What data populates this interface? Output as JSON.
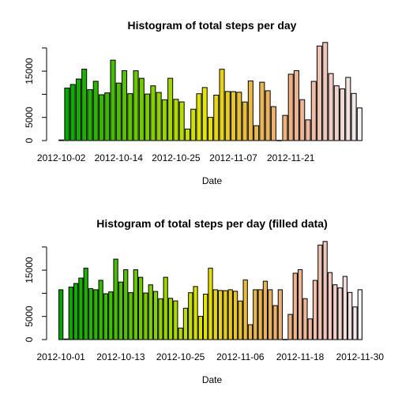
{
  "chart_data": [
    {
      "type": "bar",
      "title": "Histogram of total steps per day",
      "xlabel": "Date",
      "ylabel": "",
      "ylim": [
        0,
        21500
      ],
      "yticks": [
        0,
        5000,
        15000
      ],
      "ytick_labels": [
        "0",
        "5000",
        "15000"
      ],
      "xtick_labels": [
        "2012-10-02",
        "2012-10-14",
        "2012-10-25",
        "2012-11-07",
        "2012-11-21"
      ],
      "xtick_indices": [
        0,
        10,
        20,
        30,
        40
      ],
      "palette": "terrain",
      "values": [
        126,
        11352,
        12116,
        13294,
        15420,
        11015,
        12811,
        9900,
        10304,
        17382,
        12426,
        15098,
        10139,
        15084,
        13452,
        10056,
        11829,
        10395,
        8821,
        13460,
        8918,
        8355,
        2492,
        6778,
        10119,
        11458,
        5018,
        9819,
        15414,
        10600,
        10571,
        10439,
        8334,
        12883,
        3219,
        12608,
        10765,
        7336,
        41,
        5441,
        14339,
        15110,
        8841,
        4472,
        12787,
        20427,
        21194,
        14478,
        11834,
        11162,
        13646,
        10183,
        7047
      ]
    },
    {
      "type": "bar",
      "title": "Histogram of total steps per day (filled data)",
      "xlabel": "Date",
      "ylabel": "",
      "ylim": [
        0,
        21500
      ],
      "yticks": [
        0,
        5000,
        15000
      ],
      "ytick_labels": [
        "0",
        "5000",
        "15000"
      ],
      "xtick_labels": [
        "2012-10-01",
        "2012-10-13",
        "2012-10-25",
        "2012-11-06",
        "2012-11-18",
        "2012-11-30"
      ],
      "xtick_indices": [
        0,
        12,
        24,
        36,
        48,
        60
      ],
      "palette": "terrain",
      "values": [
        10766,
        126,
        11352,
        12116,
        13294,
        15420,
        11015,
        10766,
        12811,
        9900,
        10304,
        17382,
        12426,
        15098,
        10139,
        15084,
        13452,
        10056,
        11829,
        10395,
        8821,
        13460,
        8918,
        8355,
        2492,
        6778,
        10119,
        11458,
        5018,
        9819,
        15414,
        10766,
        10600,
        10571,
        10766,
        10439,
        8334,
        12883,
        3219,
        10766,
        10766,
        12608,
        10765,
        7336,
        10766,
        41,
        5441,
        14339,
        15110,
        8841,
        4472,
        12787,
        20427,
        21194,
        14478,
        11834,
        11162,
        13646,
        10183,
        7047,
        10766
      ]
    }
  ]
}
